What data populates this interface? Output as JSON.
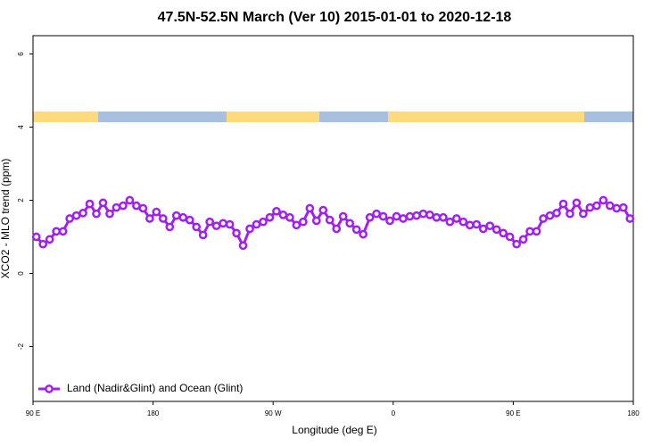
{
  "chart_data": {
    "type": "line",
    "title": "47.5N-52.5N March (Ver 10)   2015-01-01 to 2020-12-18",
    "xlabel": "Longitude (deg E)",
    "ylabel": "XCO2 - MLO trend (ppm)",
    "xlim": [
      90,
      540
    ],
    "xticks": [
      {
        "value": 90,
        "label": "90 E"
      },
      180,
      {
        "value": 270,
        "label": "90 W"
      },
      {
        "value": 360,
        "label": "0"
      },
      {
        "value": 450,
        "label": "90 E"
      },
      {
        "value": 540,
        "label": "180"
      }
    ],
    "ylim": [
      -3.5,
      6.5
    ],
    "yticks": [
      -2,
      0,
      2,
      4,
      6
    ],
    "legend": "bottom-left",
    "x": [
      92.5,
      97.5,
      102.5,
      107.5,
      112.5,
      117.5,
      122.5,
      127.5,
      132.5,
      137.5,
      142.5,
      147.5,
      152.5,
      157.5,
      162.5,
      167.5,
      172.5,
      177.5,
      182.5,
      187.5,
      192.5,
      197.5,
      202.5,
      207.5,
      212.5,
      217.5,
      222.5,
      227.5,
      232.5,
      237.5,
      242.5,
      247.5,
      252.5,
      257.5,
      262.5,
      267.5,
      272.5,
      277.5,
      282.5,
      287.5,
      292.5,
      297.5,
      302.5,
      307.5,
      312.5,
      317.5,
      322.5,
      327.5,
      332.5,
      337.5,
      342.5,
      347.5,
      352.5,
      357.5,
      362.5,
      367.5,
      372.5,
      377.5,
      382.5,
      387.5,
      392.5,
      397.5,
      402.5,
      407.5,
      412.5,
      417.5,
      422.5,
      427.5,
      432.5,
      437.5,
      442.5,
      447.5,
      452.5,
      457.5,
      462.5,
      467.5,
      472.5,
      477.5,
      482.5,
      487.5,
      492.5,
      497.5,
      502.5,
      507.5,
      512.5,
      517.5,
      522.5,
      527.5,
      532.5,
      537.5
    ],
    "series": [
      {
        "name": "Land (Nadir&Glint) and Ocean (Glint)",
        "color": "#a020f0",
        "values": [
          1.0,
          0.8,
          0.93,
          1.15,
          1.15,
          1.5,
          1.58,
          1.65,
          1.9,
          1.63,
          1.93,
          1.63,
          1.8,
          1.85,
          2.0,
          1.85,
          1.78,
          1.5,
          1.68,
          1.5,
          1.27,
          1.58,
          1.53,
          1.46,
          1.27,
          1.05,
          1.41,
          1.3,
          1.37,
          1.34,
          1.1,
          0.76,
          1.22,
          1.34,
          1.41,
          1.53,
          1.7,
          1.6,
          1.53,
          1.32,
          1.41,
          1.78,
          1.44,
          1.73,
          1.46,
          1.22,
          1.56,
          1.37,
          1.2,
          1.07,
          1.53,
          1.63,
          1.56,
          1.44,
          1.56,
          1.5,
          1.56,
          1.58,
          1.63,
          1.6,
          1.53,
          1.53,
          1.41,
          1.5,
          1.41,
          1.32,
          1.34,
          1.22,
          1.3,
          1.2,
          1.1,
          1.0,
          0.8,
          0.93,
          1.15,
          1.15,
          1.5,
          1.58,
          1.65,
          1.9,
          1.63,
          1.93,
          1.63,
          1.8,
          1.85,
          2.0,
          1.85,
          1.78,
          1.8,
          1.5
        ]
      }
    ]
  }
}
